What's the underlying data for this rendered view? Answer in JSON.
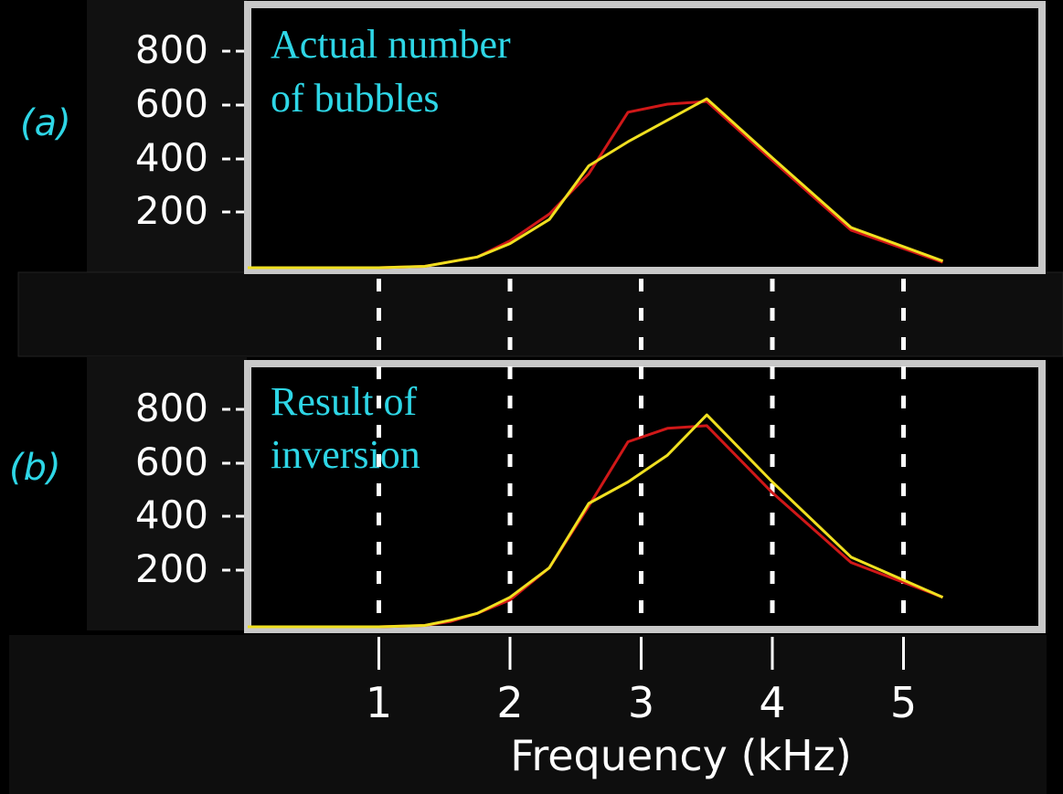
{
  "chart_data": [
    {
      "panel_label": "(a)",
      "type": "line",
      "annotation_lines": [
        "Actual number",
        "of bubbles"
      ],
      "yticks": [
        "800",
        "600",
        "400",
        "200"
      ],
      "ylim": [
        0,
        1000
      ],
      "xlim": [
        0,
        6
      ],
      "series": [
        {
          "color": "#d01818",
          "x": [
            0,
            1,
            1.35,
            1.75,
            2.0,
            2.3,
            2.6,
            2.9,
            3.2,
            3.5,
            4.0,
            4.6,
            5.3
          ],
          "values": [
            0,
            0,
            5,
            40,
            100,
            200,
            350,
            580,
            610,
            620,
            400,
            140,
            20
          ]
        },
        {
          "color": "#f0e020",
          "x": [
            0,
            1,
            1.35,
            1.75,
            2.0,
            2.3,
            2.6,
            2.9,
            3.2,
            3.5,
            4.0,
            4.6,
            5.3
          ],
          "values": [
            0,
            0,
            5,
            40,
            90,
            180,
            380,
            470,
            550,
            630,
            410,
            150,
            25
          ]
        }
      ]
    },
    {
      "panel_label": "(b)",
      "type": "line",
      "annotation_lines": [
        "Result of",
        "inversion"
      ],
      "yticks": [
        "800",
        "600",
        "400",
        "200"
      ],
      "ylim": [
        0,
        1000
      ],
      "xlim": [
        0,
        6
      ],
      "series": [
        {
          "color": "#d01818",
          "x": [
            0,
            1,
            1.35,
            1.55,
            1.75,
            2.0,
            2.3,
            2.6,
            2.9,
            3.2,
            3.5,
            4.0,
            4.6,
            5.3
          ],
          "values": [
            0,
            0,
            5,
            20,
            50,
            100,
            220,
            450,
            690,
            740,
            750,
            500,
            240,
            110
          ]
        },
        {
          "color": "#f0e020",
          "x": [
            0,
            1,
            1.35,
            1.55,
            1.75,
            2.0,
            2.3,
            2.6,
            2.9,
            3.2,
            3.5,
            4.0,
            4.6,
            5.3
          ],
          "values": [
            0,
            0,
            5,
            25,
            50,
            110,
            220,
            460,
            540,
            640,
            790,
            540,
            260,
            110
          ]
        }
      ]
    }
  ],
  "x_axis": {
    "ticks": [
      1,
      2,
      3,
      4,
      5
    ],
    "tick_labels": [
      "1",
      "2",
      "3",
      "4",
      "5"
    ],
    "label": "Frequency (kHz)"
  }
}
